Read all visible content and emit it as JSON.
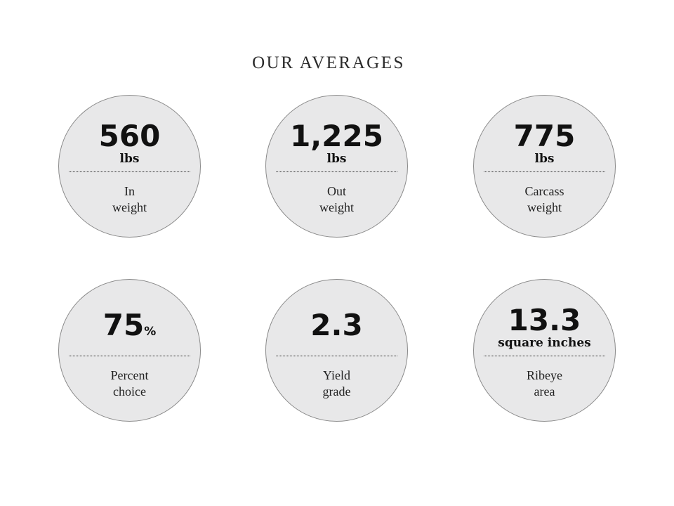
{
  "title": "OUR AVERAGES",
  "stats": [
    {
      "value": "560",
      "suffix": "",
      "unit": "lbs",
      "label_line1": "In",
      "label_line2": "weight"
    },
    {
      "value": "1,225",
      "suffix": "",
      "unit": "lbs",
      "label_line1": "Out",
      "label_line2": "weight"
    },
    {
      "value": "775",
      "suffix": "",
      "unit": "lbs",
      "label_line1": "Carcass",
      "label_line2": "weight"
    },
    {
      "value": "75",
      "suffix": "%",
      "unit": "",
      "label_line1": "Percent",
      "label_line2": "choice"
    },
    {
      "value": "2.3",
      "suffix": "",
      "unit": "",
      "label_line1": "Yield",
      "label_line2": "grade"
    },
    {
      "value": "13.3",
      "suffix": "",
      "unit": "square inches",
      "label_line1": "Ribeye",
      "label_line2": "area"
    }
  ],
  "colors": {
    "circle_fill": "#e8e8e9",
    "circle_border": "#8a8a8a",
    "text": "#111111"
  }
}
